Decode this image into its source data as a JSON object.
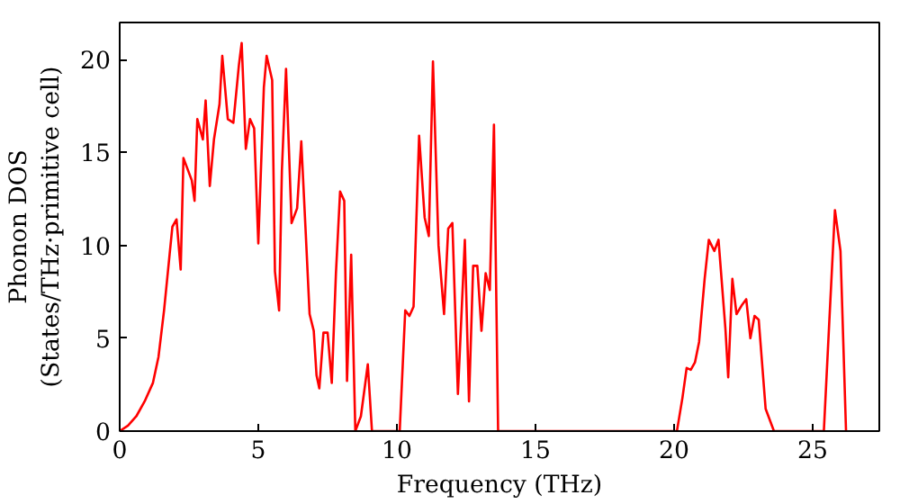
{
  "chart_data": {
    "type": "line",
    "xlabel": "Frequency (THz)",
    "ylabel": "Phonon DOS\n(States/THz·primitive cell)",
    "xlim": [
      0,
      27.4
    ],
    "ylim": [
      0,
      22
    ],
    "xticks": [
      0,
      5,
      10,
      15,
      20,
      25
    ],
    "yticks": [
      0,
      5,
      10,
      15,
      20
    ],
    "grid": false,
    "series": [
      {
        "color": "#ff0000",
        "x": [
          0,
          0.3,
          0.6,
          0.9,
          1.2,
          1.4,
          1.6,
          1.8,
          1.9,
          2.05,
          2.2,
          2.3,
          2.6,
          2.7,
          2.8,
          3.0,
          3.1,
          3.25,
          3.4,
          3.6,
          3.7,
          3.9,
          4.1,
          4.3,
          4.4,
          4.55,
          4.7,
          4.85,
          5.0,
          5.2,
          5.3,
          5.5,
          5.6,
          5.75,
          5.85,
          6.0,
          6.2,
          6.4,
          6.55,
          6.7,
          6.85,
          7.0,
          7.1,
          7.2,
          7.35,
          7.5,
          7.65,
          7.8,
          7.95,
          8.1,
          8.2,
          8.35,
          8.5,
          8.7,
          8.95,
          9.1,
          10.1,
          10.3,
          10.45,
          10.6,
          10.8,
          11.0,
          11.15,
          11.3,
          11.5,
          11.7,
          11.85,
          12.0,
          12.2,
          12.45,
          12.6,
          12.75,
          12.9,
          13.05,
          13.2,
          13.35,
          13.5,
          13.65,
          20.1,
          20.3,
          20.45,
          20.6,
          20.75,
          20.9,
          21.1,
          21.25,
          21.45,
          21.6,
          21.85,
          21.95,
          22.1,
          22.25,
          22.45,
          22.6,
          22.75,
          22.9,
          23.05,
          23.3,
          23.6,
          25.4,
          25.6,
          25.8,
          26.0,
          26.2
        ],
        "values": [
          0,
          0.3,
          0.8,
          1.6,
          2.6,
          4,
          6.5,
          9.5,
          11,
          11.4,
          8.7,
          14.7,
          13.5,
          12.4,
          16.8,
          15.7,
          17.8,
          13.2,
          15.7,
          17.6,
          20.2,
          16.8,
          16.6,
          19.7,
          20.9,
          15.2,
          16.8,
          16.3,
          10.1,
          18.5,
          20.2,
          18.9,
          8.6,
          6.5,
          14,
          19.5,
          11.2,
          12,
          15.6,
          11,
          6.3,
          5.4,
          3,
          2.3,
          5.3,
          5.3,
          2.6,
          8.5,
          12.9,
          12.4,
          2.7,
          9.5,
          0,
          0.8,
          3.6,
          0,
          0,
          6.5,
          6.2,
          6.7,
          15.9,
          11.5,
          10.5,
          19.9,
          10,
          6.3,
          10.9,
          11.2,
          2,
          10.3,
          1.6,
          8.9,
          8.9,
          5.4,
          8.5,
          7.6,
          16.5,
          0,
          0,
          1.8,
          3.4,
          3.3,
          3.7,
          4.8,
          8.2,
          10.3,
          9.7,
          10.3,
          5.5,
          2.9,
          8.2,
          6.3,
          6.8,
          7.1,
          5,
          6.2,
          6,
          1.2,
          0,
          0,
          6,
          11.9,
          9.7,
          0
        ]
      }
    ]
  }
}
